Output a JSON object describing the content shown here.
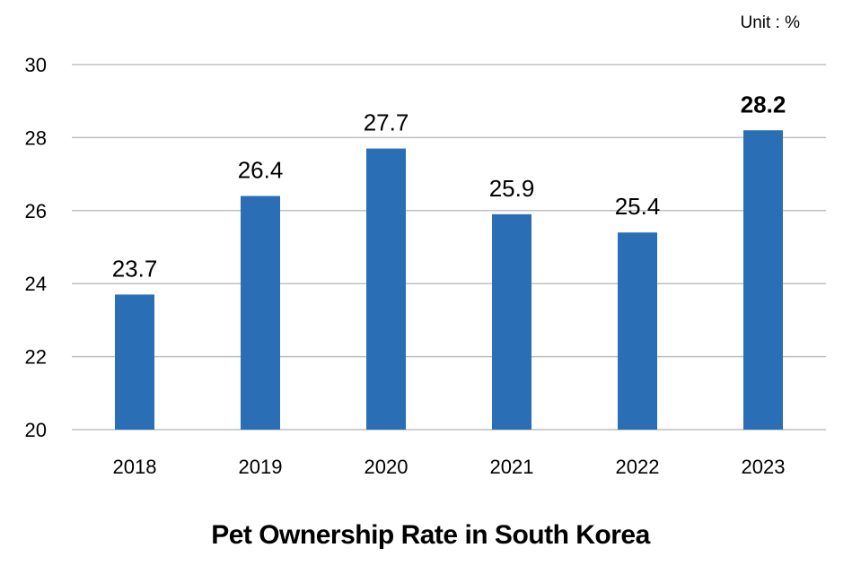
{
  "unit_label": "Unit : %",
  "chart_data": {
    "type": "bar",
    "title": "Pet Ownership Rate in South Korea",
    "xlabel": "",
    "ylabel": "",
    "categories": [
      "2018",
      "2019",
      "2020",
      "2021",
      "2022",
      "2023"
    ],
    "values": [
      23.7,
      26.4,
      27.7,
      25.9,
      25.4,
      28.2
    ],
    "data_labels": [
      "23.7",
      "26.4",
      "27.7",
      "25.9",
      "25.4",
      "28.2"
    ],
    "emphasized_label": "28.2",
    "ylim": [
      20,
      30
    ],
    "yticks": [
      "20",
      "22",
      "24",
      "26",
      "28",
      "30"
    ],
    "grid": true,
    "bar_color": "#2a6fb5",
    "grid_color": "#bfbfbf"
  }
}
